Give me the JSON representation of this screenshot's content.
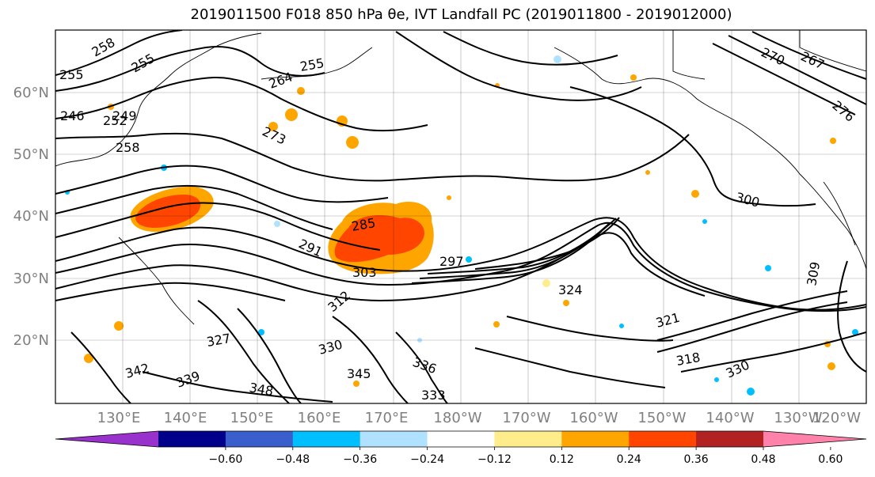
{
  "title": "2019011500 F018 850 hPa θe, IVT Landfall PC (2019011800 - 2019012000)",
  "map": {
    "lat_labels": [
      "60°N",
      "50°N",
      "40°N",
      "30°N",
      "20°N"
    ],
    "lon_labels": [
      "130°E",
      "140°E",
      "150°E",
      "160°E",
      "170°E",
      "180°W",
      "170°W",
      "160°W",
      "150°W",
      "140°W",
      "130°W",
      "120°W"
    ],
    "contour_labels": [
      "258",
      "255",
      "255",
      "255",
      "246",
      "252",
      "249",
      "258",
      "264",
      "273",
      "270",
      "267",
      "276",
      "300",
      "291",
      "285",
      "297",
      "303",
      "324",
      "321",
      "327",
      "330",
      "345",
      "336",
      "339",
      "342",
      "348",
      "318",
      "330",
      "333",
      "309",
      "312"
    ]
  },
  "colorbar": {
    "colors": [
      "#9932CC",
      "#00008B",
      "#3A5FCD",
      "#00BFFF",
      "#B0E2FF",
      "#FFFFFF",
      "#FFEC8B",
      "#FFA500",
      "#FF4500",
      "#B22222",
      "#FF82AB"
    ],
    "tick_labels": [
      "-0.60",
      "-0.48",
      "-0.36",
      "-0.24",
      "-0.12",
      "0.12",
      "0.24",
      "0.36",
      "0.48",
      "0.60"
    ]
  }
}
